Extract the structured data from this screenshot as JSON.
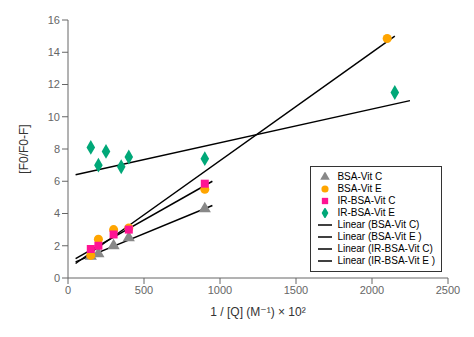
{
  "chart_data": {
    "type": "scatter",
    "xlabel": "1 / [Q] (M⁻¹) × 10²",
    "ylabel": "[F0/F0-F]",
    "xlim": [
      0,
      2500
    ],
    "ylim": [
      0,
      16
    ],
    "xticks": [
      0,
      500,
      1000,
      1500,
      2000,
      2500
    ],
    "yticks": [
      0,
      2,
      4,
      6,
      8,
      10,
      12,
      14,
      16
    ],
    "grid": false,
    "legend": "lower right",
    "series": [
      {
        "name": "BSA-Vit C",
        "type": "scatter",
        "color": "#888888",
        "marker": "triangle",
        "x": [
          150,
          200,
          300,
          400,
          900
        ],
        "values": [
          1.35,
          1.5,
          2.0,
          2.5,
          4.3
        ]
      },
      {
        "name": "BSA-Vit E",
        "type": "scatter",
        "color": "#FFA500",
        "marker": "circle",
        "x": [
          150,
          200,
          300,
          400,
          900,
          2100
        ],
        "values": [
          1.4,
          2.4,
          3.0,
          3.1,
          5.5,
          14.85
        ]
      },
      {
        "name": "IR-BSA-Vit C",
        "type": "scatter",
        "color": "#FF1493",
        "marker": "square",
        "x": [
          150,
          200,
          300,
          400,
          900
        ],
        "values": [
          1.8,
          2.0,
          2.7,
          3.0,
          5.85
        ]
      },
      {
        "name": "IR-BSA-Vit E",
        "type": "scatter",
        "color": "#00A878",
        "marker": "diamond",
        "x": [
          150,
          200,
          250,
          350,
          400,
          900,
          2150
        ],
        "values": [
          8.1,
          7.0,
          7.85,
          6.9,
          7.5,
          7.4,
          11.5
        ]
      },
      {
        "name": "Linear (BSA-Vit C)",
        "type": "line",
        "color": "#000000",
        "line_style": "solid",
        "x": [
          50,
          950
        ],
        "values": [
          1.0,
          4.5
        ]
      },
      {
        "name": "Linear (BSA-Vit E )",
        "type": "line",
        "color": "#000000",
        "line_style": "solid",
        "x": [
          50,
          2150
        ],
        "values": [
          0.9,
          15.0
        ]
      },
      {
        "name": "Linear (IR-BSA-Vit C)",
        "type": "line",
        "color": "#000000",
        "line_style": "solid",
        "x": [
          50,
          950
        ],
        "values": [
          1.2,
          6.0
        ]
      },
      {
        "name": "Linear (IR-BSA-Vit E )",
        "type": "line",
        "color": "#000000",
        "line_style": "solid",
        "x": [
          50,
          2250
        ],
        "values": [
          6.4,
          11.0
        ]
      }
    ]
  }
}
